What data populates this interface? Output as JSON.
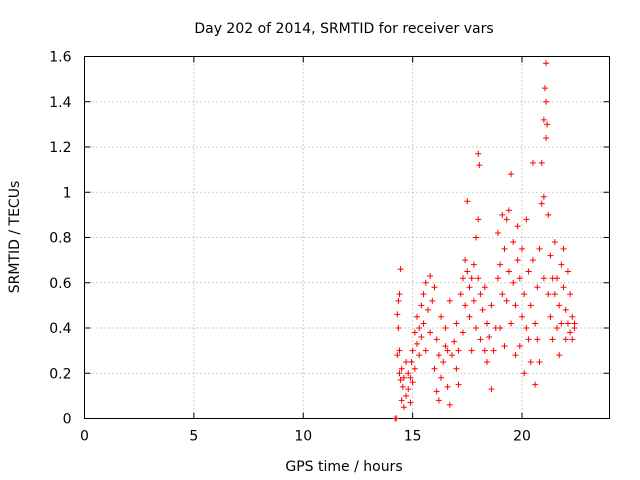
{
  "chart_data": {
    "type": "scatter",
    "title": "Day 202 of 2014, SRMTID for receiver vars",
    "xlabel": "GPS time / hours",
    "ylabel": "SRMTID / TECUs",
    "xlim": [
      0,
      24
    ],
    "ylim": [
      0,
      1.6
    ],
    "x_ticks": [
      0,
      5,
      10,
      15,
      20
    ],
    "x_tick_labels": [
      "0",
      "5",
      "10",
      "15",
      "20"
    ],
    "y_ticks": [
      0,
      0.2,
      0.4,
      0.6,
      0.8,
      1.0,
      1.2,
      1.4,
      1.6
    ],
    "y_tick_labels": [
      "0",
      "0.2",
      "0.4",
      "0.6",
      "0.8",
      "1",
      "1.2",
      "1.4",
      "1.6"
    ],
    "grid": true,
    "marker": "+",
    "color": "#ff0000",
    "series": [
      {
        "name": "SRMTID",
        "points": [
          [
            14.2,
            0.0
          ],
          [
            14.25,
            0.0
          ],
          [
            14.3,
            0.46
          ],
          [
            14.35,
            0.52
          ],
          [
            14.4,
            0.55
          ],
          [
            14.45,
            0.66
          ],
          [
            14.35,
            0.4
          ],
          [
            14.3,
            0.28
          ],
          [
            14.4,
            0.3
          ],
          [
            14.4,
            0.2
          ],
          [
            14.45,
            0.17
          ],
          [
            14.5,
            0.22
          ],
          [
            14.55,
            0.14
          ],
          [
            14.6,
            0.18
          ],
          [
            14.5,
            0.08
          ],
          [
            14.6,
            0.05
          ],
          [
            14.7,
            0.1
          ],
          [
            14.7,
            0.25
          ],
          [
            14.8,
            0.2
          ],
          [
            14.8,
            0.13
          ],
          [
            14.9,
            0.07
          ],
          [
            14.9,
            0.18
          ],
          [
            15.0,
            0.16
          ],
          [
            14.95,
            0.25
          ],
          [
            15.0,
            0.3
          ],
          [
            15.1,
            0.38
          ],
          [
            15.1,
            0.22
          ],
          [
            15.2,
            0.33
          ],
          [
            15.2,
            0.45
          ],
          [
            15.3,
            0.4
          ],
          [
            15.3,
            0.28
          ],
          [
            15.4,
            0.5
          ],
          [
            15.4,
            0.36
          ],
          [
            15.5,
            0.55
          ],
          [
            15.5,
            0.42
          ],
          [
            15.6,
            0.6
          ],
          [
            15.6,
            0.3
          ],
          [
            15.7,
            0.48
          ],
          [
            15.8,
            0.63
          ],
          [
            15.8,
            0.38
          ],
          [
            15.9,
            0.52
          ],
          [
            16.0,
            0.58
          ],
          [
            16.0,
            0.22
          ],
          [
            16.1,
            0.12
          ],
          [
            16.1,
            0.35
          ],
          [
            16.2,
            0.28
          ],
          [
            16.2,
            0.08
          ],
          [
            16.3,
            0.45
          ],
          [
            16.3,
            0.18
          ],
          [
            16.4,
            0.25
          ],
          [
            16.5,
            0.32
          ],
          [
            16.5,
            0.4
          ],
          [
            16.6,
            0.3
          ],
          [
            16.6,
            0.14
          ],
          [
            16.7,
            0.06
          ],
          [
            16.7,
            0.52
          ],
          [
            16.8,
            0.28
          ],
          [
            16.9,
            0.34
          ],
          [
            17.0,
            0.22
          ],
          [
            17.0,
            0.42
          ],
          [
            17.1,
            0.3
          ],
          [
            17.1,
            0.15
          ],
          [
            17.2,
            0.55
          ],
          [
            17.3,
            0.38
          ],
          [
            17.3,
            0.62
          ],
          [
            17.4,
            0.7
          ],
          [
            17.4,
            0.5
          ],
          [
            17.5,
            0.96
          ],
          [
            17.5,
            0.65
          ],
          [
            17.6,
            0.58
          ],
          [
            17.6,
            0.45
          ],
          [
            17.7,
            0.62
          ],
          [
            17.7,
            0.3
          ],
          [
            17.8,
            0.68
          ],
          [
            17.8,
            0.52
          ],
          [
            17.9,
            0.8
          ],
          [
            17.9,
            0.4
          ],
          [
            18.0,
            0.88
          ],
          [
            18.0,
            0.62
          ],
          [
            18.0,
            1.17
          ],
          [
            18.05,
            1.12
          ],
          [
            18.1,
            0.55
          ],
          [
            18.1,
            0.35
          ],
          [
            18.2,
            0.48
          ],
          [
            18.3,
            0.3
          ],
          [
            18.3,
            0.58
          ],
          [
            18.4,
            0.42
          ],
          [
            18.4,
            0.25
          ],
          [
            18.5,
            0.36
          ],
          [
            18.6,
            0.13
          ],
          [
            18.6,
            0.5
          ],
          [
            18.7,
            0.3
          ],
          [
            18.8,
            0.4
          ],
          [
            18.9,
            0.62
          ],
          [
            18.9,
            0.82
          ],
          [
            19.0,
            0.68
          ],
          [
            19.0,
            0.4
          ],
          [
            19.1,
            0.9
          ],
          [
            19.1,
            0.55
          ],
          [
            19.2,
            0.75
          ],
          [
            19.2,
            0.32
          ],
          [
            19.3,
            0.88
          ],
          [
            19.3,
            0.52
          ],
          [
            19.4,
            0.92
          ],
          [
            19.4,
            0.65
          ],
          [
            19.5,
            1.08
          ],
          [
            19.5,
            0.42
          ],
          [
            19.6,
            0.6
          ],
          [
            19.6,
            0.78
          ],
          [
            19.7,
            0.28
          ],
          [
            19.7,
            0.5
          ],
          [
            19.8,
            0.7
          ],
          [
            19.8,
            0.85
          ],
          [
            19.9,
            0.32
          ],
          [
            19.9,
            0.62
          ],
          [
            20.0,
            0.45
          ],
          [
            20.0,
            0.75
          ],
          [
            20.1,
            0.2
          ],
          [
            20.1,
            0.55
          ],
          [
            20.2,
            0.4
          ],
          [
            20.2,
            0.88
          ],
          [
            20.3,
            0.35
          ],
          [
            20.3,
            0.65
          ],
          [
            20.4,
            0.25
          ],
          [
            20.4,
            0.5
          ],
          [
            20.5,
            1.13
          ],
          [
            20.5,
            0.7
          ],
          [
            20.6,
            0.42
          ],
          [
            20.6,
            0.15
          ],
          [
            20.7,
            0.35
          ],
          [
            20.7,
            0.58
          ],
          [
            20.8,
            0.75
          ],
          [
            20.8,
            0.25
          ],
          [
            20.9,
            1.13
          ],
          [
            20.9,
            0.95
          ],
          [
            21.0,
            0.98
          ],
          [
            21.0,
            0.62
          ],
          [
            21.0,
            1.32
          ],
          [
            21.05,
            1.46
          ],
          [
            21.1,
            1.57
          ],
          [
            21.1,
            1.4
          ],
          [
            21.1,
            1.24
          ],
          [
            21.15,
            1.3
          ],
          [
            21.2,
            0.9
          ],
          [
            21.2,
            0.55
          ],
          [
            21.3,
            0.72
          ],
          [
            21.3,
            0.45
          ],
          [
            21.4,
            0.62
          ],
          [
            21.4,
            0.35
          ],
          [
            21.5,
            0.55
          ],
          [
            21.5,
            0.78
          ],
          [
            21.6,
            0.4
          ],
          [
            21.6,
            0.62
          ],
          [
            21.7,
            0.28
          ],
          [
            21.7,
            0.5
          ],
          [
            21.8,
            0.68
          ],
          [
            21.8,
            0.42
          ],
          [
            21.9,
            0.58
          ],
          [
            21.9,
            0.75
          ],
          [
            22.0,
            0.35
          ],
          [
            22.0,
            0.48
          ],
          [
            22.1,
            0.65
          ],
          [
            22.1,
            0.42
          ],
          [
            22.2,
            0.55
          ],
          [
            22.2,
            0.38
          ],
          [
            22.3,
            0.45
          ],
          [
            22.3,
            0.35
          ],
          [
            22.4,
            0.42
          ],
          [
            22.4,
            0.4
          ]
        ]
      }
    ]
  }
}
